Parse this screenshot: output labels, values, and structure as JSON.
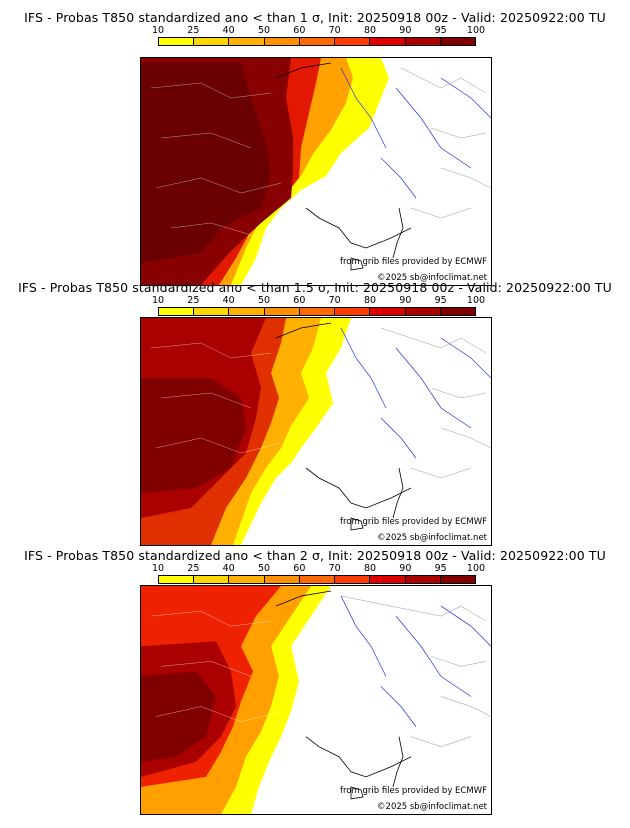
{
  "colorbar": {
    "labels": [
      "10",
      "25",
      "40",
      "50",
      "60",
      "70",
      "80",
      "90",
      "95",
      "100"
    ],
    "colors": [
      "#ffff00",
      "#ffd700",
      "#ffb000",
      "#ff9000",
      "#ff6a00",
      "#ff3c00",
      "#dd0000",
      "#aa0000",
      "#800000"
    ]
  },
  "panels": [
    {
      "title": "IFS - Probas T850  standardized ano < than 1 σ, Init: 20250918 00z - Valid: 20250922:00 TU",
      "credit_source": "from grib files provided by ECMWF",
      "credit_copyright": "©2025 sb@infoclimat.net",
      "sigma_threshold": 1,
      "max_probability_class": "100"
    },
    {
      "title": "IFS - Probas T850  standardized ano < than 1.5 σ, Init: 20250918 00z - Valid: 20250922:00 TU",
      "credit_source": "from grib files provided by ECMWF",
      "credit_copyright": "©2025 sb@infoclimat.net",
      "sigma_threshold": 1.5,
      "max_probability_class": "95"
    },
    {
      "title": "IFS - Probas T850  standardized ano < than 2 σ, Init: 20250918 00z - Valid: 20250922:00 TU",
      "credit_source": "from grib files provided by ECMWF",
      "credit_copyright": "©2025 sb@infoclimat.net",
      "sigma_threshold": 2,
      "max_probability_class": "95"
    }
  ]
}
